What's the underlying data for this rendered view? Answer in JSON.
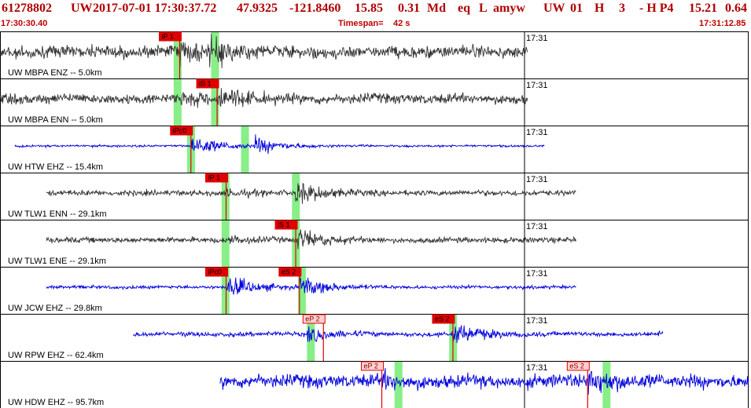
{
  "header": {
    "event_id": "61278802",
    "network": "UW",
    "datetime": "2017-07-01 17:30:37.72",
    "lat": "47.9325",
    "lon": "-121.8460",
    "depth": "15.85",
    "magnitude": "0.31",
    "mag_type": "Md",
    "event_type": "eq",
    "location_type": "L",
    "author": "amyw",
    "src_net": "UW",
    "version": "01",
    "flag_h": "H",
    "count": "3",
    "dash_hp": "- H P4",
    "value1": "15.21",
    "value2": "0.64",
    "start_time": "17:30:30.40",
    "timespan_label": "Timespan=",
    "timespan_value": "42 s",
    "end_time": "17:31:12.85"
  },
  "colors": {
    "header_text": "#b00000",
    "trace_black": "#333333",
    "trace_blue": "#0000dd",
    "pick_red": "#e00000",
    "pick_light": "#ffd0d0",
    "band_green": "#88ee88",
    "border": "#000000"
  },
  "channels": [
    {
      "label": "UW MBPA ENZ -- 5.0km",
      "color": "black",
      "minute_label": "17:31",
      "data_start": 0.0,
      "data_end": 0.705,
      "amp": 0.24,
      "noise": 0.55,
      "onsets": [
        [
          0.24,
          0.8
        ],
        [
          0.28,
          1.0
        ]
      ],
      "picks": [
        {
          "label": "iP 1",
          "x": 0.24,
          "style": "solid"
        }
      ],
      "bands": [
        0.232,
        0.282
      ]
    },
    {
      "label": "UW MBPA ENN -- 5.0km",
      "color": "black",
      "minute_label": "17:31",
      "data_start": 0.0,
      "data_end": 0.705,
      "amp": 0.14,
      "noise": 0.45,
      "onsets": [
        [
          0.24,
          0.5
        ],
        [
          0.29,
          1.0
        ]
      ],
      "picks": [
        {
          "label": "iS 1",
          "x": 0.29,
          "style": "solid"
        }
      ],
      "bands": [
        0.232,
        0.282
      ]
    },
    {
      "label": "UW HTW EHZ -- 15.4km",
      "color": "blue",
      "minute_label": "17:31",
      "data_start": 0.02,
      "data_end": 0.728,
      "amp": 0.05,
      "noise": 0.1,
      "onsets": [
        [
          0.255,
          1.0
        ],
        [
          0.34,
          0.8
        ]
      ],
      "picks": [
        {
          "label": "iPc0",
          "x": 0.255,
          "style": "solid"
        }
      ],
      "bands": [
        0.25,
        0.322
      ]
    },
    {
      "label": "UW TLW1 ENN -- 29.1km",
      "color": "black",
      "minute_label": "17:31",
      "data_start": 0.062,
      "data_end": 0.77,
      "amp": 0.06,
      "noise": 0.25,
      "onsets": [
        [
          0.302,
          0.3
        ],
        [
          0.395,
          1.0
        ]
      ],
      "picks": [
        {
          "label": "iP 1",
          "x": 0.302,
          "style": "solid"
        }
      ],
      "bands": [
        0.296,
        0.39
      ]
    },
    {
      "label": "UW TLW1 ENE -- 29.1km",
      "color": "black",
      "minute_label": "17:31",
      "data_start": 0.062,
      "data_end": 0.77,
      "amp": 0.06,
      "noise": 0.25,
      "onsets": [
        [
          0.302,
          0.3
        ],
        [
          0.395,
          1.0
        ]
      ],
      "picks": [
        {
          "label": "iS 1",
          "x": 0.395,
          "style": "solid"
        }
      ],
      "bands": [
        0.296,
        0.39
      ]
    },
    {
      "label": "UW JCW EHZ -- 29.8km",
      "color": "blue",
      "minute_label": "17:31",
      "data_start": 0.062,
      "data_end": 0.77,
      "amp": 0.07,
      "noise": 0.15,
      "onsets": [
        [
          0.302,
          1.0
        ],
        [
          0.4,
          0.9
        ]
      ],
      "picks": [
        {
          "label": "iPc0",
          "x": 0.302,
          "style": "solid"
        },
        {
          "label": "eS 2",
          "x": 0.4,
          "style": "solid"
        }
      ],
      "bands": [
        0.296,
        0.398
      ]
    },
    {
      "label": "UW RPW EHZ -- 62.4km",
      "color": "blue",
      "minute_label": "17:31",
      "data_start": 0.178,
      "data_end": 0.886,
      "amp": 0.12,
      "noise": 0.2,
      "onsets": [
        [
          0.41,
          0.6
        ],
        [
          0.605,
          1.0
        ]
      ],
      "picks": [
        {
          "label": "eP 2",
          "x": 0.432,
          "style": "outline"
        },
        {
          "label": "eS 2",
          "x": 0.605,
          "style": "solid"
        }
      ],
      "bands": [
        0.41,
        0.6
      ]
    },
    {
      "label": "UW HDW EHZ -- 95.7km",
      "color": "blue",
      "minute_label": "17:31",
      "data_start": 0.294,
      "data_end": 1.0,
      "amp": 0.18,
      "noise": 0.6,
      "onsets": [
        [
          0.51,
          0.5
        ],
        [
          0.785,
          1.0
        ]
      ],
      "picks": [
        {
          "label": "eP 2",
          "x": 0.51,
          "style": "outline"
        },
        {
          "label": "eS 2",
          "x": 0.785,
          "style": "outline"
        }
      ],
      "bands": [
        0.527,
        0.805
      ]
    }
  ]
}
